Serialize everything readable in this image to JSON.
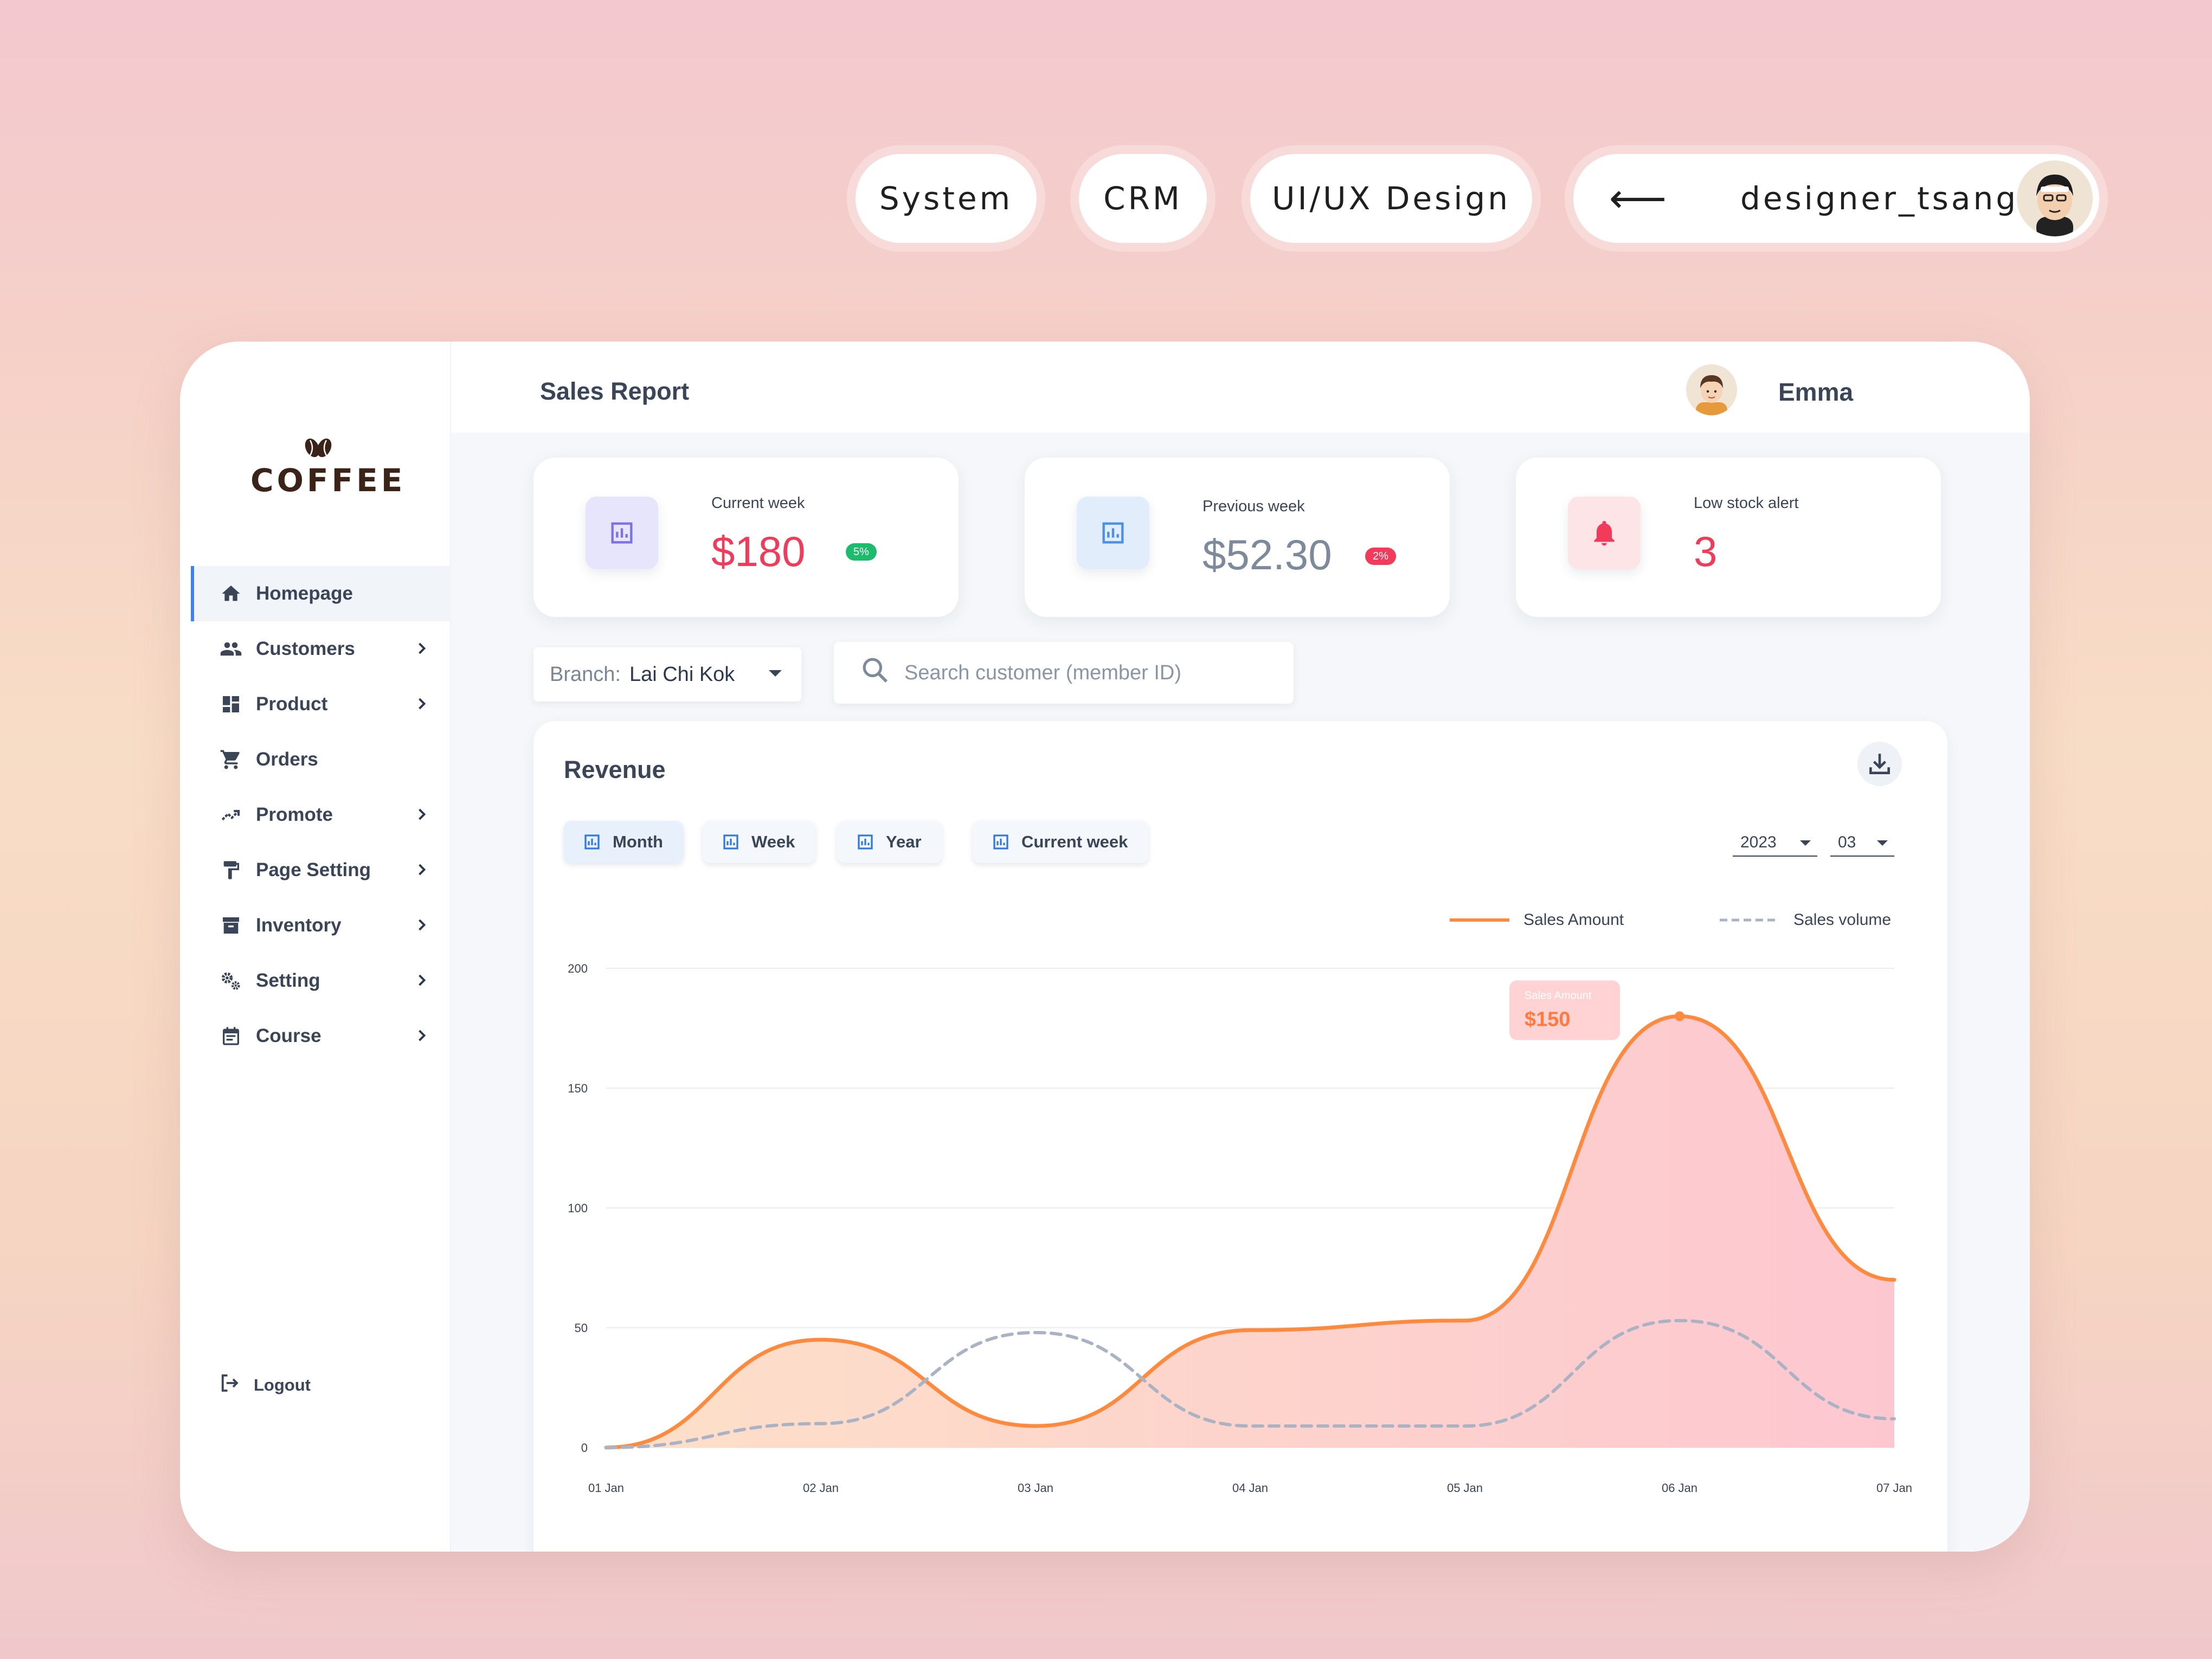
{
  "tags": {
    "system": "System",
    "crm": "CRM",
    "uiux": "UI/UX Design",
    "author_arrow": "⟵",
    "author": "designer_tsang"
  },
  "brand": {
    "logo_text": "COFFEE"
  },
  "sidebar": {
    "items": [
      {
        "label": "Homepage",
        "icon": "home-icon",
        "active": true,
        "has_submenu": false
      },
      {
        "label": "Customers",
        "icon": "people-icon",
        "active": false,
        "has_submenu": true
      },
      {
        "label": "Product",
        "icon": "dashboard-icon",
        "active": false,
        "has_submenu": true
      },
      {
        "label": "Orders",
        "icon": "cart-icon",
        "active": false,
        "has_submenu": false
      },
      {
        "label": "Promote",
        "icon": "trending-icon",
        "active": false,
        "has_submenu": true
      },
      {
        "label": "Page Setting",
        "icon": "paint-roller-icon",
        "active": false,
        "has_submenu": true
      },
      {
        "label": "Inventory",
        "icon": "archive-icon",
        "active": false,
        "has_submenu": true
      },
      {
        "label": "Setting",
        "icon": "gears-icon",
        "active": false,
        "has_submenu": true
      },
      {
        "label": "Course",
        "icon": "calendar-icon",
        "active": false,
        "has_submenu": true
      }
    ],
    "logout": "Logout"
  },
  "header": {
    "title": "Sales Report",
    "user_name": "Emma"
  },
  "stats": [
    {
      "label": "Current week",
      "value": "$180",
      "badge": "5%",
      "value_color": "#f23a5a",
      "badge_color": "#1dbb6c",
      "tile_color": "#e6e5fb",
      "icon": "bar-chart-icon"
    },
    {
      "label": "Previous week",
      "value": "$52.30",
      "badge": "2%",
      "value_color": "#7d8a9c",
      "badge_color": "#f23a5a",
      "tile_color": "#e2edfb",
      "icon": "bar-chart-icon"
    },
    {
      "label": "Low stock alert",
      "value": "3",
      "value_color": "#f23a5a",
      "tile_color": "#fde4e6",
      "icon": "bell-icon"
    }
  ],
  "filters": {
    "branch_label": "Branch:",
    "branch_value": "Lai Chi Kok",
    "search_placeholder": "Search customer (member ID)"
  },
  "revenue": {
    "title": "Revenue",
    "tabs": [
      "Month",
      "Week",
      "Year",
      "Current week"
    ],
    "year": "2023",
    "month": "03",
    "tooltip": {
      "label": "Sales Amount",
      "value": "$150"
    }
  },
  "chart_data": {
    "type": "area",
    "x": [
      "01 Jan",
      "02 Jan",
      "03 Jan",
      "04 Jan",
      "05 Jan",
      "06 Jan",
      "07 Jan"
    ],
    "ylim": [
      0,
      200
    ],
    "yticks": [
      0,
      50,
      100,
      150,
      200
    ],
    "grid": true,
    "legend": "top-right",
    "series": [
      {
        "name": "Sales Amount",
        "values": [
          0,
          45,
          9,
          49,
          53,
          180,
          70
        ],
        "color": "#ff8a3d",
        "style": "solid",
        "fill": true
      },
      {
        "name": "Sales volume",
        "values": [
          0,
          10,
          48,
          9,
          9,
          53,
          12
        ],
        "color": "#a9b3c4",
        "style": "dashed",
        "fill": false
      }
    ]
  }
}
